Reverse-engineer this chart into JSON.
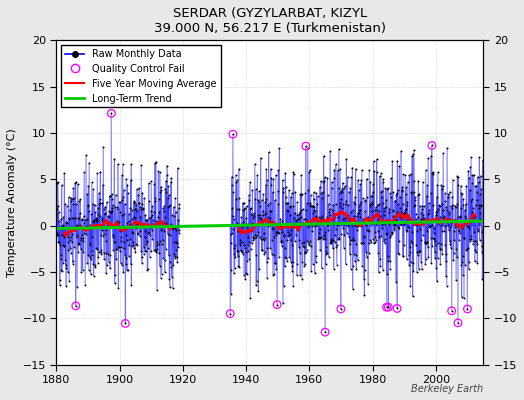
{
  "title": "SERDAR (GYZYLARBAT, KIZYL",
  "subtitle": "39.000 N, 56.217 E (Turkmenistan)",
  "ylabel": "Temperature Anomaly (°C)",
  "credit": "Berkeley Earth",
  "xlim": [
    1880,
    2015
  ],
  "ylim": [
    -15,
    20
  ],
  "yticks": [
    -15,
    -10,
    -5,
    0,
    5,
    10,
    15,
    20
  ],
  "xticks": [
    1880,
    1900,
    1920,
    1940,
    1960,
    1980,
    2000
  ],
  "bg_color": "#e8e8e8",
  "plot_bg_color": "#ffffff",
  "raw_line_color": "#0000ff",
  "raw_dot_color": "#000000",
  "qc_fail_color": "#ff00ff",
  "moving_avg_color": "#ff0000",
  "trend_color": "#00cc00",
  "trend_slope": 0.006,
  "trend_intercept": 0.1,
  "noise_std": 3.2,
  "moving_avg_window": 60,
  "gap_start_year": 1919,
  "gap_end_year": 1935,
  "data_start": 1880,
  "data_end": 2014,
  "qc_threshold": 8.5,
  "seed_data": 42,
  "seed_qc": 77
}
